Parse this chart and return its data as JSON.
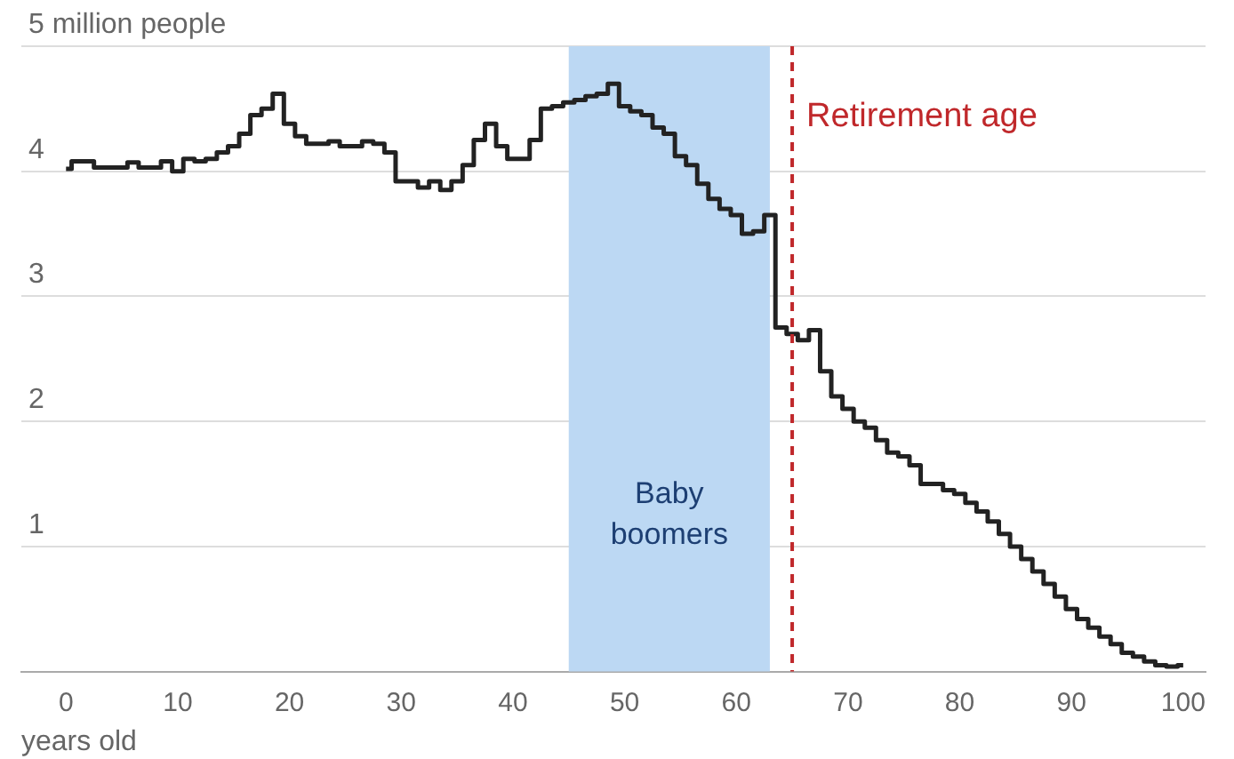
{
  "chart_data": {
    "type": "step",
    "xlabel": "years old",
    "x": [
      0,
      1,
      2,
      3,
      4,
      5,
      6,
      7,
      8,
      9,
      10,
      11,
      12,
      13,
      14,
      15,
      16,
      17,
      18,
      19,
      20,
      21,
      22,
      23,
      24,
      25,
      26,
      27,
      28,
      29,
      30,
      31,
      32,
      33,
      34,
      35,
      36,
      37,
      38,
      39,
      40,
      41,
      42,
      43,
      44,
      45,
      46,
      47,
      48,
      49,
      50,
      51,
      52,
      53,
      54,
      55,
      56,
      57,
      58,
      59,
      60,
      61,
      62,
      63,
      64,
      65,
      66,
      67,
      68,
      69,
      70,
      71,
      72,
      73,
      74,
      75,
      76,
      77,
      78,
      79,
      80,
      81,
      82,
      83,
      84,
      85,
      86,
      87,
      88,
      89,
      90,
      91,
      92,
      93,
      94,
      95,
      96,
      97,
      98,
      99,
      100
    ],
    "series": [
      {
        "color": "#222222",
        "values": [
          4.02,
          4.08,
          4.08,
          4.03,
          4.03,
          4.03,
          4.07,
          4.03,
          4.03,
          4.08,
          4.0,
          4.1,
          4.08,
          4.1,
          4.15,
          4.2,
          4.3,
          4.45,
          4.5,
          4.62,
          4.38,
          4.28,
          4.22,
          4.22,
          4.24,
          4.2,
          4.2,
          4.24,
          4.22,
          4.15,
          3.92,
          3.92,
          3.87,
          3.92,
          3.85,
          3.92,
          4.05,
          4.25,
          4.38,
          4.2,
          4.1,
          4.1,
          4.25,
          4.5,
          4.52,
          4.55,
          4.57,
          4.6,
          4.62,
          4.7,
          4.52,
          4.48,
          4.45,
          4.35,
          4.3,
          4.12,
          4.05,
          3.9,
          3.78,
          3.7,
          3.65,
          3.5,
          3.52,
          3.65,
          2.75,
          2.7,
          2.65,
          2.73,
          2.4,
          2.2,
          2.1,
          2.0,
          1.95,
          1.85,
          1.75,
          1.72,
          1.65,
          1.5,
          1.5,
          1.45,
          1.42,
          1.35,
          1.28,
          1.2,
          1.1,
          1.0,
          0.9,
          0.8,
          0.7,
          0.6,
          0.5,
          0.42,
          0.35,
          0.28,
          0.22,
          0.15,
          0.12,
          0.08,
          0.05,
          0.04,
          0.05
        ]
      }
    ],
    "xlim": [
      -4,
      102
    ],
    "xticks": [
      0,
      10,
      20,
      30,
      40,
      50,
      60,
      70,
      80,
      90,
      100
    ],
    "ylim": [
      0,
      5
    ],
    "yticks": [
      1,
      2,
      3,
      4,
      {
        "value": 5,
        "label": "5 million people"
      }
    ],
    "grid": "y",
    "legend": false,
    "bands": [
      {
        "axis": "x",
        "from": 45,
        "to": 63,
        "label": "Baby boomers",
        "color": "#bcd8f3"
      }
    ],
    "ref_lines": [
      {
        "axis": "x",
        "value": 65,
        "label": "Retirement age",
        "color": "#c0282b",
        "line_style": "dashed"
      }
    ]
  }
}
